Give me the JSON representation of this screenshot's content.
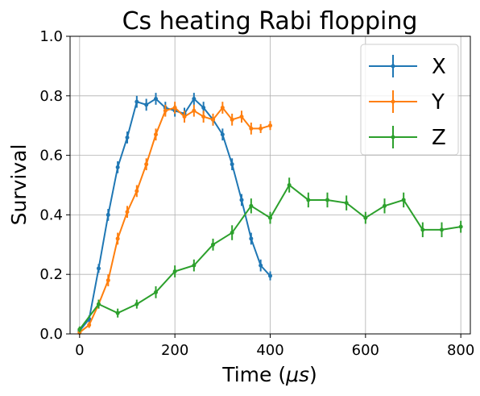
{
  "chart_data": {
    "type": "line",
    "title": "Cs heating Rabi flopping",
    "xlabel_main": "Time (",
    "xlabel_unit": "μs",
    "xlabel_close": ")",
    "ylabel": "Survival",
    "xlim": [
      -20,
      820
    ],
    "ylim": [
      0.0,
      1.0
    ],
    "xticks": [
      0,
      200,
      400,
      600,
      800
    ],
    "yticks": [
      0.0,
      0.2,
      0.4,
      0.6,
      0.8,
      1.0
    ],
    "xtick_labels": [
      "0",
      "200",
      "400",
      "600",
      "800"
    ],
    "ytick_labels": [
      "0.0",
      "0.2",
      "0.4",
      "0.6",
      "0.8",
      "1.0"
    ],
    "grid": true,
    "legend_position": "top-right",
    "series": [
      {
        "name": "X",
        "color": "#1f77b4",
        "x": [
          0,
          20,
          40,
          60,
          80,
          100,
          120,
          140,
          160,
          180,
          200,
          220,
          240,
          260,
          280,
          300,
          320,
          340,
          360,
          380,
          400
        ],
        "y": [
          0.01,
          0.05,
          0.22,
          0.4,
          0.56,
          0.66,
          0.78,
          0.77,
          0.79,
          0.76,
          0.75,
          0.74,
          0.79,
          0.76,
          0.72,
          0.67,
          0.57,
          0.45,
          0.32,
          0.23,
          0.195
        ],
        "err": [
          0.008,
          0.012,
          0.015,
          0.02,
          0.02,
          0.02,
          0.02,
          0.02,
          0.02,
          0.02,
          0.02,
          0.02,
          0.02,
          0.02,
          0.02,
          0.02,
          0.02,
          0.02,
          0.02,
          0.02,
          0.015
        ]
      },
      {
        "name": "Y",
        "color": "#ff7f0e",
        "x": [
          0,
          20,
          40,
          60,
          80,
          100,
          120,
          140,
          160,
          180,
          200,
          220,
          240,
          260,
          280,
          300,
          320,
          340,
          360,
          380,
          400
        ],
        "y": [
          0.005,
          0.03,
          0.1,
          0.18,
          0.32,
          0.41,
          0.48,
          0.57,
          0.67,
          0.75,
          0.76,
          0.73,
          0.75,
          0.73,
          0.72,
          0.76,
          0.72,
          0.73,
          0.69,
          0.69,
          0.7
        ],
        "err": [
          0.008,
          0.01,
          0.015,
          0.02,
          0.02,
          0.02,
          0.02,
          0.02,
          0.02,
          0.02,
          0.02,
          0.02,
          0.02,
          0.02,
          0.02,
          0.02,
          0.02,
          0.02,
          0.02,
          0.015,
          0.015
        ]
      },
      {
        "name": "Z",
        "color": "#2ca02c",
        "x": [
          0,
          40,
          80,
          120,
          160,
          200,
          240,
          280,
          320,
          360,
          400,
          440,
          480,
          520,
          560,
          600,
          640,
          680,
          720,
          760,
          800
        ],
        "y": [
          0.015,
          0.1,
          0.07,
          0.1,
          0.14,
          0.21,
          0.23,
          0.3,
          0.34,
          0.43,
          0.39,
          0.5,
          0.45,
          0.45,
          0.44,
          0.39,
          0.43,
          0.45,
          0.35,
          0.35,
          0.36
        ],
        "err": [
          0.01,
          0.015,
          0.015,
          0.015,
          0.02,
          0.02,
          0.02,
          0.02,
          0.025,
          0.025,
          0.02,
          0.025,
          0.025,
          0.025,
          0.025,
          0.02,
          0.025,
          0.025,
          0.025,
          0.025,
          0.02
        ]
      }
    ]
  }
}
